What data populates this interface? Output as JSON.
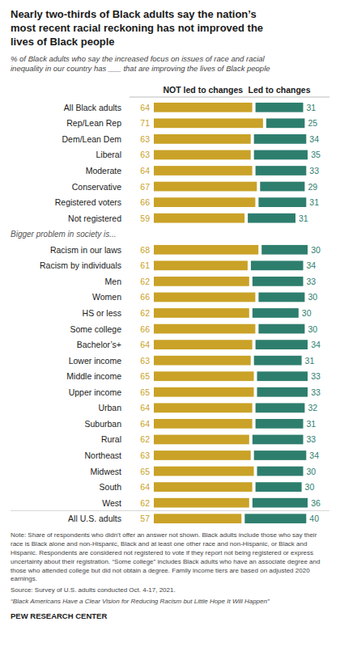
{
  "chart_data": {
    "type": "bar",
    "orientation": "horizontal",
    "stacked": true,
    "data_labels": true,
    "tick_labels": "y",
    "title": "Nearly two-thirds of Black adults say the nation’s\nmost recent racial reckoning has not improved the\nlives of Black people",
    "subtitle": "% of Black adults who say the increased focus on issues of race and racial\ninequality in our country has ___ that are improving the lives of Black people",
    "categories": [
      "All Black adults",
      "Rep/Lean Rep",
      "Dem/Lean Dem",
      "Liberal",
      "Moderate",
      "Conservative",
      "Registered voters",
      "Not registered",
      "Bigger problem in society is...",
      "Racism in our laws",
      "Racism by individuals",
      "Men",
      "Women",
      "HS or less",
      "Some college",
      "Bachelor’s+",
      "Lower income",
      "Middle income",
      "Upper income",
      "Urban",
      "Suburban",
      "Rural",
      "Northeast",
      "Midwest",
      "South",
      "West",
      "All U.S. adults"
    ],
    "series": [
      {
        "name": "NOT led to changes",
        "color": "#C9A227",
        "values": [
          64,
          71,
          63,
          63,
          64,
          67,
          66,
          59,
          null,
          68,
          61,
          62,
          66,
          62,
          66,
          64,
          63,
          65,
          65,
          64,
          64,
          62,
          63,
          65,
          64,
          62,
          57
        ]
      },
      {
        "name": "Led to changes",
        "color": "#2E7E6E",
        "values": [
          31,
          25,
          34,
          35,
          33,
          29,
          31,
          31,
          null,
          30,
          34,
          33,
          30,
          30,
          30,
          34,
          31,
          33,
          33,
          32,
          31,
          33,
          34,
          30,
          30,
          36,
          40
        ]
      }
    ],
    "xlim": [
      0,
      100
    ],
    "note": "Note: Share of respondents who didn’t offer an answer not shown. Black adults include those who say their race is Black alone and non-Hispanic, Black and at least one other race and non-Hispanic, or Black and Hispanic. Respondents are considered not registered to vote if they report not being registered or express uncertainty about their registration. “Some college” includes Black adults who have an associate degree and those who attended college but did not obtain a degree. Family income tiers are based on adjusted 2020 earnings.",
    "source": "Source: Survey of U.S. adults conducted Oct. 4-17, 2021.",
    "report_title": "“Black Americans Have a Clear Vision for Reducing Racism but Little Hope It Will Happen”",
    "credit": "PEW RESEARCH CENTER"
  }
}
